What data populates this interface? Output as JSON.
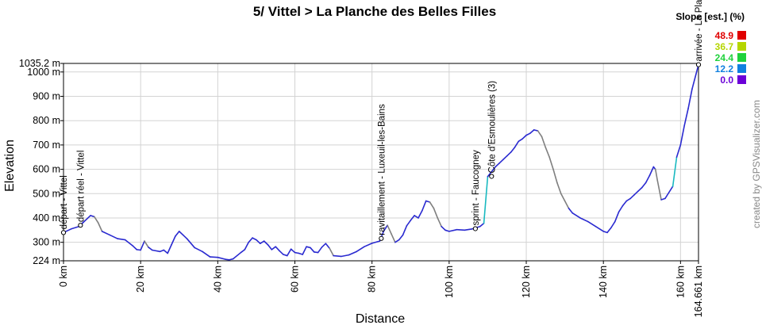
{
  "chart_data": {
    "type": "area",
    "title": "5/ Vittel > La Planche des Belles Filles",
    "xlabel": "Distance",
    "ylabel": "Elevation",
    "x_unit": "km",
    "y_unit": "m",
    "xlim": [
      0,
      164.661
    ],
    "ylim": [
      224,
      1035.2
    ],
    "x_ticks": [
      0,
      20,
      40,
      60,
      80,
      100,
      120,
      140,
      160
    ],
    "x_tick_labels": [
      "0 km",
      "20 km",
      "40 km",
      "60 km",
      "80 km",
      "100 km",
      "120 km",
      "140 km",
      "160 km",
      "164.661 km"
    ],
    "y_ticks": [
      300,
      400,
      500,
      600,
      700,
      800,
      900,
      1000
    ],
    "y_tick_labels": [
      "224 m",
      "300 m",
      "400 m",
      "500 m",
      "600 m",
      "700 m",
      "800 m",
      "900 m",
      "1000 m",
      "1035.2 m"
    ],
    "grid": true,
    "profile": [
      [
        0,
        340
      ],
      [
        2,
        355
      ],
      [
        4,
        365
      ],
      [
        5,
        380
      ],
      [
        7,
        410
      ],
      [
        8,
        405
      ],
      [
        9,
        380
      ],
      [
        10,
        345
      ],
      [
        12,
        330
      ],
      [
        14,
        315
      ],
      [
        16,
        310
      ],
      [
        18,
        285
      ],
      [
        19,
        270
      ],
      [
        20,
        268
      ],
      [
        21,
        305
      ],
      [
        22,
        280
      ],
      [
        23,
        268
      ],
      [
        25,
        262
      ],
      [
        26,
        268
      ],
      [
        27,
        255
      ],
      [
        28,
        290
      ],
      [
        29,
        325
      ],
      [
        30,
        345
      ],
      [
        31,
        330
      ],
      [
        32,
        315
      ],
      [
        34,
        278
      ],
      [
        36,
        262
      ],
      [
        38,
        240
      ],
      [
        40,
        238
      ],
      [
        42,
        230
      ],
      [
        43,
        228
      ],
      [
        44,
        232
      ],
      [
        46,
        258
      ],
      [
        47,
        270
      ],
      [
        48,
        300
      ],
      [
        49,
        318
      ],
      [
        50,
        310
      ],
      [
        51,
        295
      ],
      [
        52,
        305
      ],
      [
        53,
        290
      ],
      [
        54,
        270
      ],
      [
        55,
        282
      ],
      [
        56,
        265
      ],
      [
        57,
        250
      ],
      [
        58,
        245
      ],
      [
        59,
        272
      ],
      [
        60,
        258
      ],
      [
        61,
        255
      ],
      [
        62,
        250
      ],
      [
        63,
        282
      ],
      [
        64,
        278
      ],
      [
        65,
        260
      ],
      [
        66,
        258
      ],
      [
        67,
        280
      ],
      [
        68,
        295
      ],
      [
        69,
        275
      ],
      [
        70,
        245
      ],
      [
        72,
        242
      ],
      [
        74,
        248
      ],
      [
        76,
        262
      ],
      [
        78,
        282
      ],
      [
        80,
        296
      ],
      [
        82,
        305
      ],
      [
        83,
        345
      ],
      [
        84,
        370
      ],
      [
        85,
        335
      ],
      [
        86,
        300
      ],
      [
        87,
        310
      ],
      [
        88,
        330
      ],
      [
        89,
        368
      ],
      [
        90,
        390
      ],
      [
        91,
        410
      ],
      [
        92,
        400
      ],
      [
        93,
        430
      ],
      [
        94,
        470
      ],
      [
        95,
        465
      ],
      [
        96,
        440
      ],
      [
        97,
        400
      ],
      [
        98,
        365
      ],
      [
        99,
        350
      ],
      [
        100,
        345
      ],
      [
        102,
        352
      ],
      [
        104,
        350
      ],
      [
        106,
        355
      ],
      [
        108,
        365
      ],
      [
        109,
        378
      ],
      [
        110,
        570
      ],
      [
        111,
        590
      ],
      [
        112,
        610
      ],
      [
        113,
        625
      ],
      [
        114,
        640
      ],
      [
        115,
        655
      ],
      [
        116,
        670
      ],
      [
        117,
        690
      ],
      [
        118,
        715
      ],
      [
        119,
        725
      ],
      [
        120,
        740
      ],
      [
        121,
        748
      ],
      [
        122,
        762
      ],
      [
        123,
        758
      ],
      [
        124,
        735
      ],
      [
        125,
        690
      ],
      [
        126,
        650
      ],
      [
        127,
        600
      ],
      [
        128,
        545
      ],
      [
        129,
        500
      ],
      [
        130,
        470
      ],
      [
        131,
        440
      ],
      [
        132,
        420
      ],
      [
        134,
        400
      ],
      [
        136,
        385
      ],
      [
        138,
        365
      ],
      [
        140,
        345
      ],
      [
        141,
        340
      ],
      [
        142,
        360
      ],
      [
        143,
        385
      ],
      [
        144,
        425
      ],
      [
        145,
        450
      ],
      [
        146,
        470
      ],
      [
        147,
        480
      ],
      [
        148,
        495
      ],
      [
        149,
        510
      ],
      [
        150,
        525
      ],
      [
        151,
        545
      ],
      [
        152,
        575
      ],
      [
        153,
        610
      ],
      [
        153.5,
        600
      ],
      [
        154,
        555
      ],
      [
        155,
        475
      ],
      [
        156,
        480
      ],
      [
        157,
        505
      ],
      [
        158,
        530
      ],
      [
        159,
        650
      ],
      [
        160,
        700
      ],
      [
        161,
        780
      ],
      [
        162,
        850
      ],
      [
        163,
        930
      ],
      [
        164,
        990
      ],
      [
        164.661,
        1030
      ]
    ],
    "annotations": [
      {
        "label": "départ - Vittel",
        "x": 0,
        "y": 340
      },
      {
        "label": "départ réel - Vittel",
        "x": 4.4,
        "y": 370
      },
      {
        "label": "ravitaillement - Luxeuil-les-Bains",
        "x": 82.4,
        "y": 316
      },
      {
        "label": "sprint - Faucogney",
        "x": 106.8,
        "y": 356
      },
      {
        "label": "Côte d'Esmoulières (3)",
        "x": 111.0,
        "y": 571
      },
      {
        "label": "arrivée - La Planche des Belles Filles",
        "x": 164.661,
        "y": 1030
      }
    ],
    "legend": {
      "title": "Slope [est.] (%)",
      "position": "top-right",
      "items": [
        {
          "value": "48.9",
          "color": "#e00000"
        },
        {
          "value": "36.7",
          "color": "#b5d600"
        },
        {
          "value": "24.4",
          "color": "#1fd23c"
        },
        {
          "value": "12.2",
          "color": "#1080e0"
        },
        {
          "value": "0.0",
          "color": "#6b00d8"
        }
      ]
    },
    "colors": {
      "line": "#2a2ad0",
      "gray": "#7f7f7f",
      "cyan": "#19b9c0",
      "grid": "#d3d3d3"
    }
  },
  "credit": "created by GPSVisualizer.com"
}
